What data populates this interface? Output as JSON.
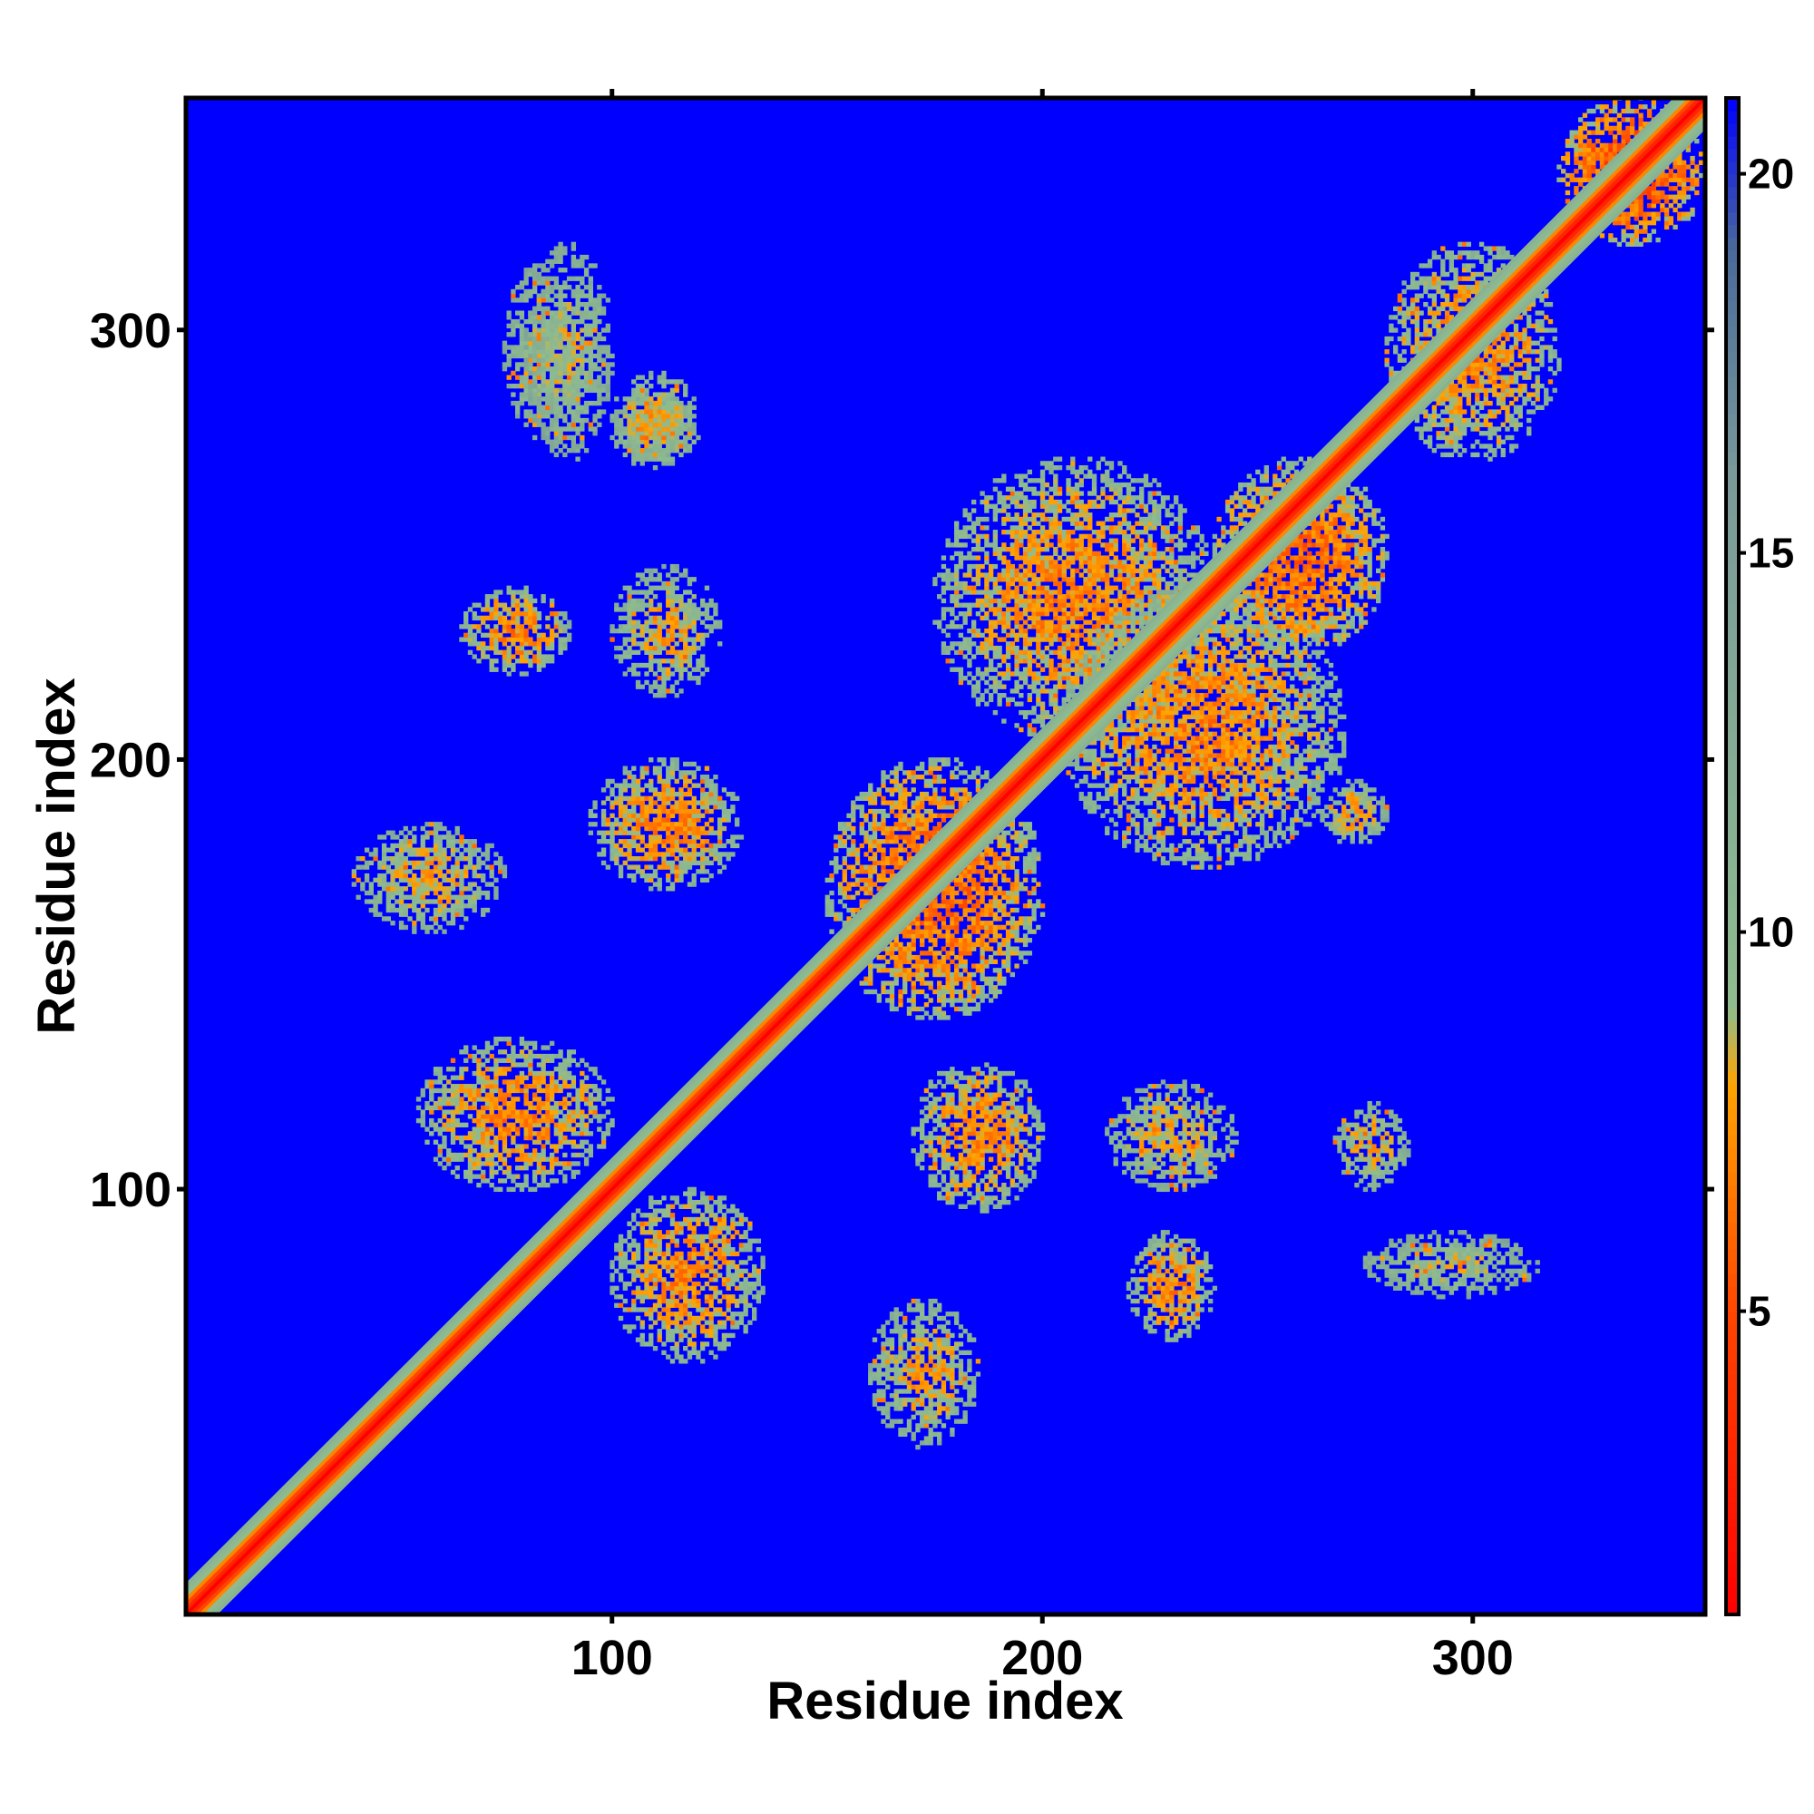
{
  "chart_data": {
    "type": "heatmap",
    "title": "",
    "xlabel": "Residue index",
    "ylabel": "Residue index",
    "xlim": [
      1,
      354
    ],
    "ylim": [
      1,
      354
    ],
    "x_ticks": [
      100,
      200,
      300
    ],
    "y_ticks": [
      100,
      200,
      300
    ],
    "colorbar": {
      "ticks": [
        5,
        10,
        15,
        20
      ],
      "range": [
        1,
        21
      ],
      "stops": [
        {
          "value": 1,
          "color": "#ff0000"
        },
        {
          "value": 5,
          "color": "#ff4500"
        },
        {
          "value": 8,
          "color": "#ffa500"
        },
        {
          "value": 9,
          "color": "#8fbc8f"
        },
        {
          "value": 16,
          "color": "#7a9a9a"
        },
        {
          "value": 19,
          "color": "#4a6a9a"
        },
        {
          "value": 21,
          "color": "#0000ff"
        }
      ]
    },
    "background_value": 21,
    "background_color": "#0000ff",
    "diagonal": {
      "start": 1,
      "end": 354,
      "center_value": 1
    },
    "contact_regions": [
      {
        "x": [
          100,
          135
        ],
        "y": [
          60,
          100
        ],
        "value": 11
      },
      {
        "x": [
          55,
          100
        ],
        "y": [
          100,
          135
        ],
        "value": 11
      },
      {
        "x": [
          160,
          185
        ],
        "y": [
          40,
          75
        ],
        "value": 12
      },
      {
        "x": [
          40,
          75
        ],
        "y": [
          160,
          185
        ],
        "value": 12
      },
      {
        "x": [
          170,
          200
        ],
        "y": [
          95,
          130
        ],
        "value": 11
      },
      {
        "x": [
          95,
          130
        ],
        "y": [
          170,
          200
        ],
        "value": 11
      },
      {
        "x": [
          220,
          240
        ],
        "y": [
          65,
          90
        ],
        "value": 11
      },
      {
        "x": [
          65,
          90
        ],
        "y": [
          220,
          240
        ],
        "value": 11
      },
      {
        "x": [
          215,
          245
        ],
        "y": [
          100,
          125
        ],
        "value": 12
      },
      {
        "x": [
          100,
          125
        ],
        "y": [
          215,
          245
        ],
        "value": 12
      },
      {
        "x": [
          268,
          285
        ],
        "y": [
          100,
          120
        ],
        "value": 12
      },
      {
        "x": [
          100,
          120
        ],
        "y": [
          268,
          285
        ],
        "value": 12
      },
      {
        "x": [
          275,
          315
        ],
        "y": [
          75,
          90
        ],
        "value": 13
      },
      {
        "x": [
          75,
          90
        ],
        "y": [
          275,
          315
        ],
        "value": 13
      },
      {
        "x": [
          150,
          200
        ],
        "y": [
          140,
          200
        ],
        "value": 10
      },
      {
        "x": [
          175,
          240
        ],
        "y": [
          205,
          270
        ],
        "value": 11
      },
      {
        "x": [
          205,
          270
        ],
        "y": [
          175,
          240
        ],
        "value": 11
      },
      {
        "x": [
          240,
          280
        ],
        "y": [
          225,
          270
        ],
        "value": 10
      },
      {
        "x": [
          265,
          280
        ],
        "y": [
          180,
          195
        ],
        "value": 12
      },
      {
        "x": [
          280,
          320
        ],
        "y": [
          270,
          320
        ],
        "value": 11
      },
      {
        "x": [
          320,
          354
        ],
        "y": [
          320,
          354
        ],
        "value": 9
      },
      {
        "x": [
          80,
          100
        ],
        "y": [
          270,
          320
        ],
        "value": 13
      },
      {
        "x": [
          100,
          120
        ],
        "y": [
          270,
          290
        ],
        "value": 12
      }
    ]
  }
}
